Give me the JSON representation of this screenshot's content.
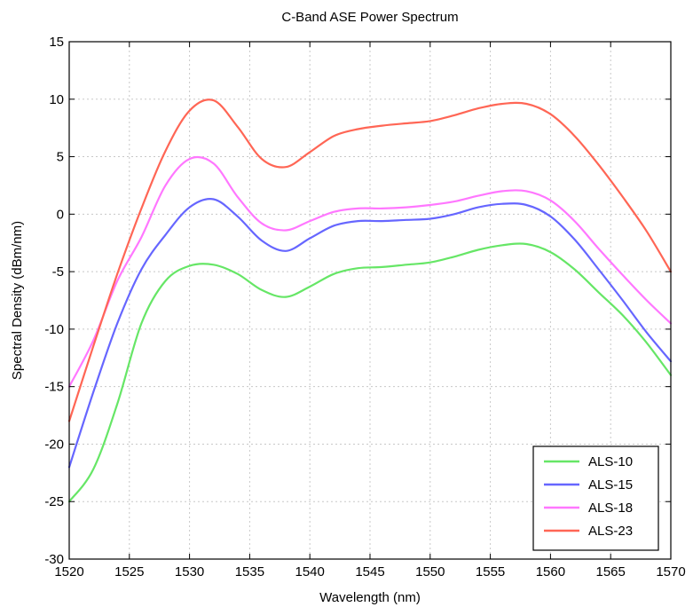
{
  "chart_data": {
    "type": "line",
    "title": "C-Band ASE Power Spectrum",
    "xlabel": "Wavelength (nm)",
    "ylabel": "Spectral Density (dBm/nm)",
    "xlim": [
      1520,
      1570
    ],
    "ylim": [
      -30,
      15
    ],
    "xticks": [
      1520,
      1525,
      1530,
      1535,
      1540,
      1545,
      1550,
      1555,
      1560,
      1565,
      1570
    ],
    "yticks": [
      15,
      10,
      5,
      0,
      -5,
      -10,
      -15,
      -20,
      -25,
      -30
    ],
    "grid": true,
    "legend_position": "bottom-right",
    "series": [
      {
        "name": "ALS-10",
        "color": "#66e666",
        "x": [
          1520,
          1522,
          1524,
          1526,
          1528,
          1530,
          1532,
          1534,
          1536,
          1538,
          1540,
          1542,
          1544,
          1546,
          1548,
          1550,
          1552,
          1554,
          1556,
          1558,
          1560,
          1562,
          1564,
          1566,
          1568,
          1570
        ],
        "y": [
          -25,
          -22.2,
          -16.5,
          -9.5,
          -5.8,
          -4.5,
          -4.4,
          -5.2,
          -6.6,
          -7.2,
          -6.3,
          -5.2,
          -4.7,
          -4.6,
          -4.4,
          -4.2,
          -3.7,
          -3.1,
          -2.7,
          -2.6,
          -3.3,
          -4.8,
          -6.8,
          -8.8,
          -11.2,
          -14
        ]
      },
      {
        "name": "ALS-15",
        "color": "#6666ff",
        "x": [
          1520,
          1522,
          1524,
          1526,
          1528,
          1530,
          1532,
          1534,
          1536,
          1538,
          1540,
          1542,
          1544,
          1546,
          1548,
          1550,
          1552,
          1554,
          1556,
          1558,
          1560,
          1562,
          1564,
          1566,
          1568,
          1570
        ],
        "y": [
          -22,
          -15.5,
          -9.5,
          -4.8,
          -1.8,
          0.6,
          1.3,
          -0.2,
          -2.3,
          -3.2,
          -2.1,
          -1,
          -0.6,
          -0.6,
          -0.5,
          -0.4,
          0,
          0.6,
          0.9,
          0.8,
          -0.2,
          -2.2,
          -4.8,
          -7.5,
          -10.3,
          -12.8
        ]
      },
      {
        "name": "ALS-18",
        "color": "#ff77ff",
        "x": [
          1520,
          1522,
          1524,
          1526,
          1528,
          1530,
          1532,
          1534,
          1536,
          1538,
          1540,
          1542,
          1544,
          1546,
          1548,
          1550,
          1552,
          1554,
          1556,
          1558,
          1560,
          1562,
          1564,
          1566,
          1568,
          1570
        ],
        "y": [
          -15,
          -11,
          -5.8,
          -2,
          2.5,
          4.8,
          4.4,
          1.5,
          -0.8,
          -1.4,
          -0.6,
          0.2,
          0.5,
          0.5,
          0.6,
          0.8,
          1.1,
          1.6,
          2,
          2,
          1.2,
          -0.6,
          -3,
          -5.3,
          -7.5,
          -9.5
        ]
      },
      {
        "name": "ALS-23",
        "color": "#ff6655",
        "x": [
          1520,
          1522,
          1524,
          1526,
          1528,
          1530,
          1532,
          1534,
          1536,
          1538,
          1540,
          1542,
          1544,
          1546,
          1548,
          1550,
          1552,
          1554,
          1556,
          1558,
          1560,
          1562,
          1564,
          1566,
          1568,
          1570
        ],
        "y": [
          -18,
          -11.5,
          -5.2,
          0.5,
          5.5,
          9,
          9.9,
          7.6,
          4.8,
          4.1,
          5.4,
          6.8,
          7.4,
          7.7,
          7.9,
          8.1,
          8.6,
          9.2,
          9.6,
          9.6,
          8.7,
          6.8,
          4.3,
          1.5,
          -1.5,
          -5
        ]
      }
    ]
  }
}
